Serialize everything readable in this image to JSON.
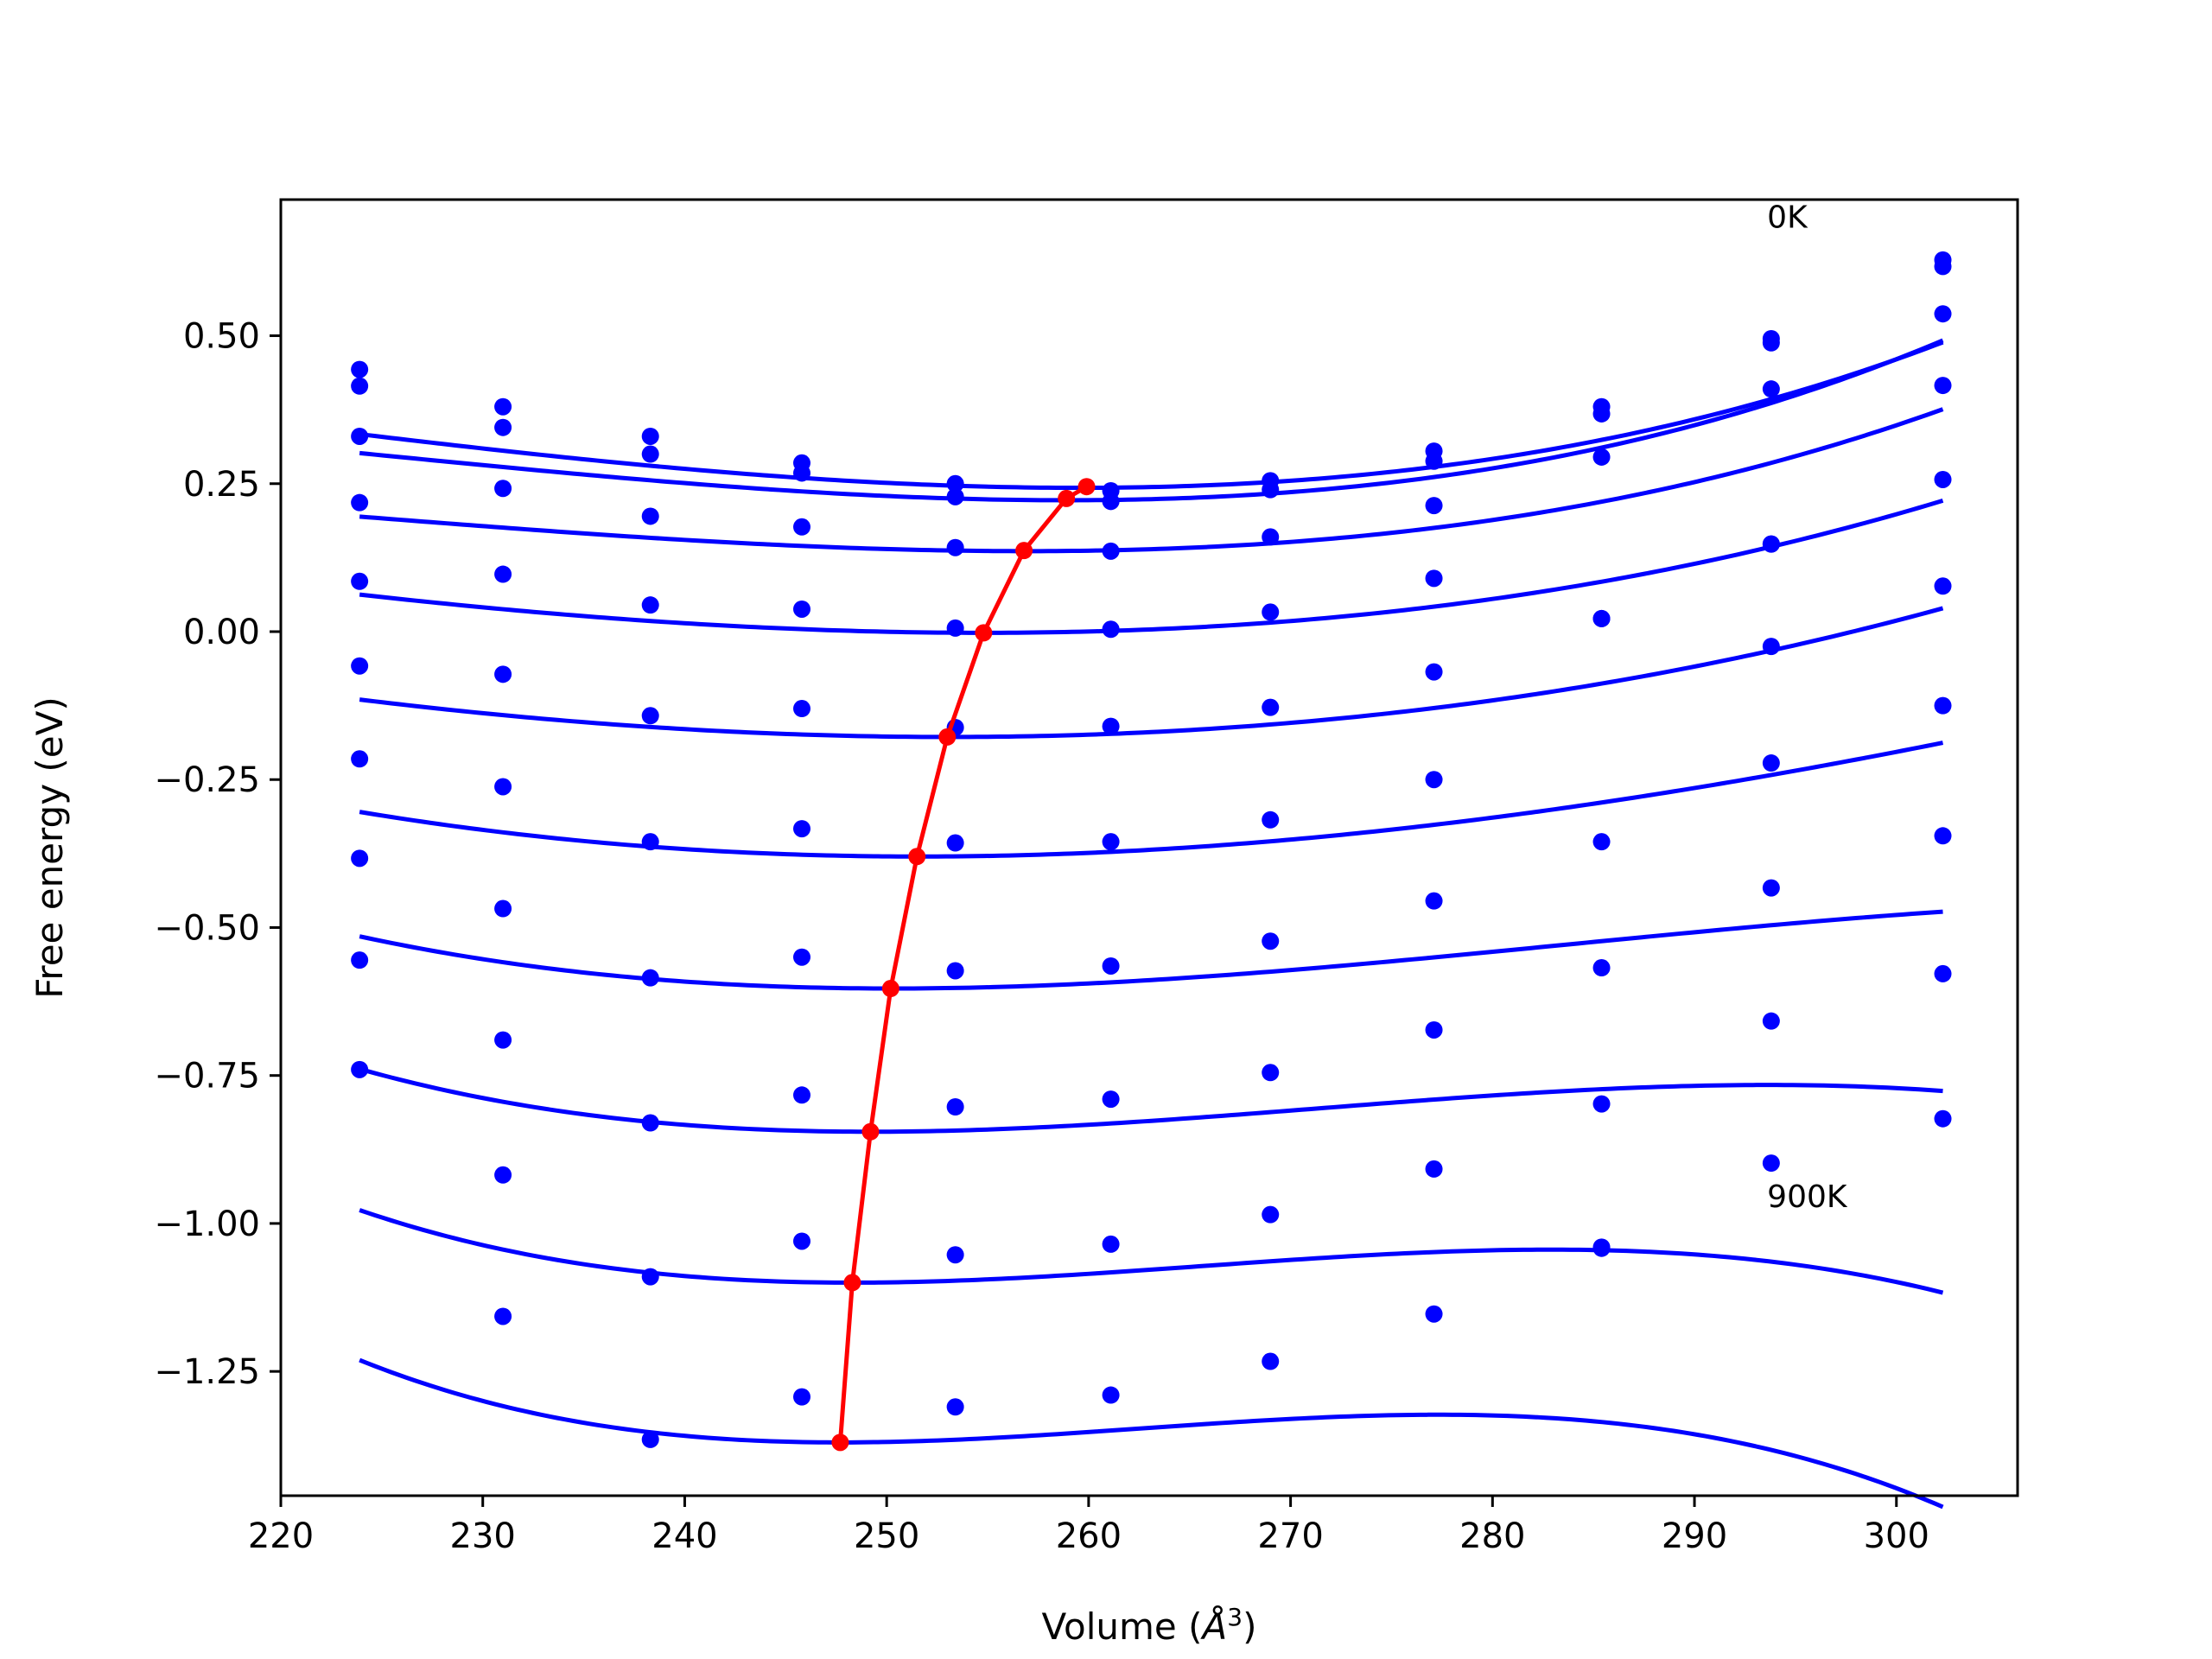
{
  "chart_data": {
    "type": "line",
    "title": "",
    "xlabel": "Volume (",
    "xlabel_symbol": "Å",
    "xlabel_exponent": "3",
    "xlabel_close": ")",
    "ylabel": "Free energy (eV)",
    "xlim": [
      220,
      306
    ],
    "ylim": [
      -1.46,
      0.73
    ],
    "xticks": [
      220,
      230,
      240,
      250,
      260,
      270,
      280,
      290,
      300
    ],
    "xtick_labels": [
      "220",
      "230",
      "240",
      "250",
      "260",
      "270",
      "280",
      "290",
      "300"
    ],
    "yticks": [
      -1.25,
      -1.0,
      -0.75,
      -0.5,
      -0.25,
      0.0,
      0.25,
      0.5
    ],
    "ytick_labels": [
      "−1.25",
      "−1.00",
      "−0.75",
      "−0.50",
      "−0.25",
      "0.00",
      "0.25",
      "0.50"
    ],
    "grid": false,
    "colors": {
      "series": "#0000ff",
      "equilibrium": "#ff0000",
      "axes": "#000000"
    },
    "annotations": [
      {
        "text": "0K",
        "x": 293.6,
        "y": 0.7
      },
      {
        "text": "900K",
        "x": 293.6,
        "y": -0.955
      }
    ],
    "volumes": [
      223.9,
      231.0,
      238.3,
      245.8,
      253.4,
      261.1,
      269.0,
      277.1,
      285.4,
      293.8,
      302.3
    ],
    "series": [
      {
        "values": [
          0.443,
          0.38,
          0.33,
          0.285,
          0.25,
          0.238,
          0.255,
          0.305,
          0.38,
          0.495,
          0.628
        ],
        "fit": {
          "v0": 259.5,
          "e0": 0.243,
          "a": 0.0001,
          "b": 8e-07
        }
      },
      {
        "values": [
          0.415,
          0.345,
          0.3,
          0.268,
          0.228,
          0.22,
          0.24,
          0.288,
          0.368,
          0.488,
          0.617
        ],
        "fit": {
          "v0": 258.9,
          "e0": 0.222,
          "a": 0.0001,
          "b": 1e-06
        }
      },
      {
        "values": [
          0.33,
          0.242,
          0.195,
          0.177,
          0.142,
          0.136,
          0.16,
          0.213,
          0.295,
          0.41,
          0.537
        ],
        "fit": {
          "v0": 256.9,
          "e0": 0.136,
          "a": 8e-05,
          "b": 8e-07
        }
      },
      {
        "values": [
          0.218,
          0.097,
          0.045,
          0.038,
          0.006,
          0.004,
          0.033,
          0.09,
          0.022,
          0.148,
          0.416
        ],
        "fit": {
          "v0": 254.8,
          "e0": -0.002,
          "a": 8e-05,
          "b": 4e-07
        }
      },
      {
        "values": [
          0.085,
          -0.072,
          -0.142,
          -0.13,
          -0.162,
          -0.16,
          -0.128,
          -0.068,
          0.022,
          0.148,
          0.257
        ],
        "fit": {
          "v0": 253.1,
          "e0": -0.178,
          "a": 8e-05,
          "b": 2e-07
        }
      },
      {
        "values": [
          -0.058,
          -0.262,
          -0.355,
          -0.333,
          -0.357,
          -0.355,
          -0.318,
          -0.25,
          -0.355,
          -0.025,
          0.077
        ],
        "fit": {
          "v0": 251.6,
          "e0": -0.38,
          "a": 9e-05,
          "b": -3e-07
        }
      },
      {
        "values": [
          -0.215,
          -0.468,
          -0.585,
          -0.55,
          -0.573,
          -0.565,
          -0.523,
          -0.455,
          -0.568,
          -0.222,
          -0.125
        ],
        "fit": {
          "v0": 250.3,
          "e0": -0.603,
          "a": 0.0001,
          "b": -1e-06
        }
      },
      {
        "values": [
          -0.383,
          -0.69,
          -0.83,
          -0.783,
          -0.803,
          -0.79,
          -0.745,
          -0.673,
          -0.798,
          -0.433,
          -0.345
        ],
        "fit": {
          "v0": 249.2,
          "e0": -0.845,
          "a": 0.00012,
          "b": -1.8e-06
        }
      },
      {
        "values": [
          -0.555,
          -0.918,
          -1.09,
          -1.03,
          -1.053,
          -1.035,
          -0.985,
          -0.908,
          -1.042,
          -0.658,
          -0.578
        ],
        "fit": {
          "v0": 248.3,
          "e0": -1.1,
          "a": 0.00014,
          "b": -2.7e-06
        }
      },
      {
        "values": [
          -0.74,
          -1.157,
          -1.365,
          -1.293,
          -1.31,
          -1.29,
          -1.233,
          -1.153,
          -1.04,
          -0.898,
          -0.823
        ],
        "fit": {
          "v0": 247.7,
          "e0": -1.37,
          "a": 0.00016,
          "b": -3.6e-06
        }
      }
    ],
    "equilibrium": {
      "x": [
        259.9,
        258.9,
        256.8,
        254.8,
        253.0,
        251.5,
        250.2,
        249.2,
        248.3,
        247.7
      ],
      "y": [
        0.245,
        0.225,
        0.137,
        -0.002,
        -0.178,
        -0.38,
        -0.603,
        -0.845,
        -1.1,
        -1.37
      ]
    }
  }
}
